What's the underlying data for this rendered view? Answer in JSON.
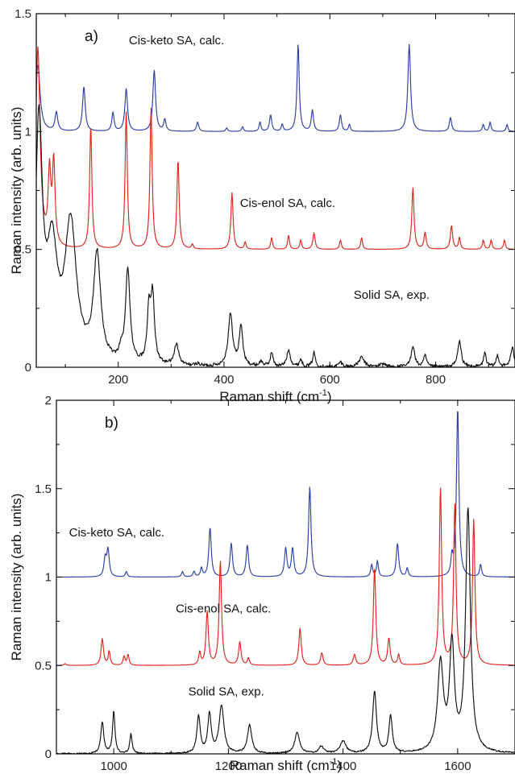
{
  "chart_data": [
    {
      "type": "line",
      "panel_label": "a)",
      "xlabel": "Raman shift (cm",
      "xlabel_sup": "-1",
      "xlabel_tail": ")",
      "ylabel": "Raman intensity (arb. units)",
      "xlim": [
        45,
        950
      ],
      "ylim": [
        0,
        1.5
      ],
      "xticks": [
        200,
        400,
        600,
        800
      ],
      "xtick_labels": [
        "200",
        "400",
        "600",
        "800"
      ],
      "yticks": [
        0,
        0.5,
        1,
        1.5
      ],
      "ytick_labels": [
        "0",
        "0.5",
        "1",
        "1.5"
      ],
      "minor_xticks": [
        100,
        300,
        500,
        700,
        900
      ],
      "minor_yticks": [
        0.25,
        0.75,
        1.25
      ],
      "series": [
        {
          "color": "#2b3fa8",
          "baseline": 1.0,
          "peaks": [
            [
              48,
              0.28,
              5
            ],
            [
              83,
              0.08,
              3
            ],
            [
              135,
              0.19,
              3
            ],
            [
              190,
              0.08,
              2.5
            ],
            [
              215,
              0.18,
              3
            ],
            [
              268,
              0.26,
              3
            ],
            [
              288,
              0.05,
              2.5
            ],
            [
              350,
              0.04,
              2.5
            ],
            [
              405,
              0.015,
              2
            ],
            [
              435,
              0.02,
              2
            ],
            [
              468,
              0.04,
              2
            ],
            [
              488,
              0.07,
              2.5
            ],
            [
              510,
              0.03,
              2
            ],
            [
              540,
              0.37,
              2.5
            ],
            [
              567,
              0.09,
              2.5
            ],
            [
              620,
              0.07,
              2.5
            ],
            [
              637,
              0.03,
              2
            ],
            [
              750,
              0.37,
              3
            ],
            [
              828,
              0.06,
              2.5
            ],
            [
              890,
              0.03,
              2
            ],
            [
              903,
              0.04,
              2
            ],
            [
              935,
              0.03,
              2
            ]
          ]
        },
        {
          "color": "#e0241c",
          "baseline": 0.5,
          "peaks": [
            [
              48,
              0.85,
              5
            ],
            [
              70,
              0.3,
              3
            ],
            [
              78,
              0.35,
              3
            ],
            [
              148,
              0.52,
              2.5
            ],
            [
              215,
              0.58,
              2.5
            ],
            [
              262,
              0.6,
              2.5
            ],
            [
              313,
              0.38,
              2.5
            ],
            [
              340,
              0.02,
              2
            ],
            [
              415,
              0.24,
              2.5
            ],
            [
              440,
              0.03,
              2
            ],
            [
              490,
              0.05,
              2
            ],
            [
              522,
              0.06,
              2
            ],
            [
              545,
              0.04,
              2
            ],
            [
              570,
              0.07,
              2.5
            ],
            [
              620,
              0.04,
              2
            ],
            [
              660,
              0.05,
              2
            ],
            [
              757,
              0.26,
              2.5
            ],
            [
              780,
              0.07,
              2.5
            ],
            [
              830,
              0.1,
              2.5
            ],
            [
              845,
              0.05,
              2
            ],
            [
              890,
              0.04,
              2
            ],
            [
              905,
              0.04,
              2
            ],
            [
              930,
              0.04,
              2
            ]
          ]
        },
        {
          "color": "#111111",
          "baseline": 0.0,
          "noise": 0.007,
          "peaks": [
            [
              50,
              1.0,
              8
            ],
            [
              75,
              0.45,
              12
            ],
            [
              110,
              0.58,
              13
            ],
            [
              160,
              0.45,
              8
            ],
            [
              205,
              0.04,
              4
            ],
            [
              218,
              0.4,
              5
            ],
            [
              258,
              0.22,
              4
            ],
            [
              265,
              0.28,
              4
            ],
            [
              310,
              0.09,
              5
            ],
            [
              350,
              0.01,
              4
            ],
            [
              412,
              0.22,
              5
            ],
            [
              432,
              0.17,
              4
            ],
            [
              470,
              0.02,
              4
            ],
            [
              490,
              0.06,
              3
            ],
            [
              522,
              0.07,
              4
            ],
            [
              545,
              0.03,
              3
            ],
            [
              570,
              0.06,
              3
            ],
            [
              620,
              0.02,
              4
            ],
            [
              660,
              0.04,
              6
            ],
            [
              700,
              0.015,
              6
            ],
            [
              757,
              0.09,
              4
            ],
            [
              780,
              0.05,
              3
            ],
            [
              845,
              0.11,
              4
            ],
            [
              893,
              0.06,
              3
            ],
            [
              917,
              0.05,
              3
            ],
            [
              945,
              0.08,
              4
            ]
          ]
        }
      ],
      "annotations": [
        {
          "text": "Cis-keto SA, calc.",
          "x": 220,
          "y": 1.37
        },
        {
          "text": "Cis-enol SA, calc.",
          "x": 430,
          "y": 0.68
        },
        {
          "text": "Solid SA, exp.",
          "x": 645,
          "y": 0.29
        }
      ]
    },
    {
      "type": "line",
      "panel_label": "b)",
      "xlabel": "Raman shift (cm",
      "xlabel_sup": "-1",
      "xlabel_tail": ")",
      "ylabel": "Raman intensity (arb. units)",
      "xlim": [
        900,
        1700
      ],
      "ylim": [
        0,
        2
      ],
      "xticks": [
        1000,
        1200,
        1400,
        1600
      ],
      "xtick_labels": [
        "1000",
        "1200",
        "1400",
        "1600"
      ],
      "yticks": [
        0,
        0.5,
        1,
        1.5,
        2
      ],
      "ytick_labels": [
        "0",
        "0.5",
        "1",
        "1.5",
        "2"
      ],
      "minor_xticks": [
        1100,
        1300,
        1500
      ],
      "minor_yticks": [
        0.25,
        0.75,
        1.25,
        1.75
      ],
      "series": [
        {
          "color": "#2b3fa8",
          "baseline": 1.0,
          "peaks": [
            [
              985,
              0.1,
              2.5
            ],
            [
              990,
              0.15,
              2.5
            ],
            [
              1022,
              0.03,
              2
            ],
            [
              1120,
              0.03,
              2
            ],
            [
              1140,
              0.03,
              2
            ],
            [
              1153,
              0.05,
              2
            ],
            [
              1168,
              0.28,
              2.5
            ],
            [
              1205,
              0.19,
              2.5
            ],
            [
              1233,
              0.18,
              2.5
            ],
            [
              1300,
              0.16,
              2.5
            ],
            [
              1312,
              0.16,
              2.5
            ],
            [
              1342,
              0.51,
              2.5
            ],
            [
              1450,
              0.07,
              2
            ],
            [
              1460,
              0.09,
              2
            ],
            [
              1495,
              0.19,
              2.5
            ],
            [
              1512,
              0.05,
              2
            ],
            [
              1590,
              0.1,
              2
            ],
            [
              1600,
              0.96,
              2.5
            ],
            [
              1640,
              0.07,
              2
            ]
          ]
        },
        {
          "color": "#e0241c",
          "baseline": 0.5,
          "peaks": [
            [
              915,
              0.01,
              2
            ],
            [
              980,
              0.15,
              2.5
            ],
            [
              992,
              0.08,
              2
            ],
            [
              1018,
              0.05,
              2
            ],
            [
              1025,
              0.06,
              2
            ],
            [
              1150,
              0.07,
              2
            ],
            [
              1163,
              0.3,
              2.5
            ],
            [
              1186,
              0.59,
              2.5
            ],
            [
              1220,
              0.13,
              2.5
            ],
            [
              1235,
              0.04,
              2
            ],
            [
              1325,
              0.21,
              2.5
            ],
            [
              1363,
              0.07,
              2.5
            ],
            [
              1420,
              0.06,
              2.5
            ],
            [
              1455,
              0.55,
              2.5
            ],
            [
              1480,
              0.15,
              2.5
            ],
            [
              1497,
              0.06,
              2
            ],
            [
              1570,
              1.0,
              2.5
            ],
            [
              1595,
              0.9,
              2.5
            ],
            [
              1628,
              0.82,
              2.5
            ]
          ]
        },
        {
          "color": "#111111",
          "baseline": 0.0,
          "noise": 0.004,
          "peaks": [
            [
              980,
              0.18,
              3
            ],
            [
              1000,
              0.24,
              2.5
            ],
            [
              1030,
              0.11,
              2.5
            ],
            [
              1148,
              0.21,
              3.5
            ],
            [
              1167,
              0.22,
              3.5
            ],
            [
              1188,
              0.27,
              5
            ],
            [
              1237,
              0.16,
              4.5
            ],
            [
              1320,
              0.12,
              5
            ],
            [
              1362,
              0.04,
              5
            ],
            [
              1400,
              0.07,
              6
            ],
            [
              1455,
              0.35,
              4
            ],
            [
              1483,
              0.21,
              3.5
            ],
            [
              1570,
              0.5,
              6
            ],
            [
              1590,
              0.6,
              5
            ],
            [
              1618,
              1.37,
              5
            ]
          ]
        }
      ],
      "annotations": [
        {
          "text": "Cis-keto SA, calc.",
          "x": 922,
          "y": 1.23
        },
        {
          "text": "Cis-enol SA, calc.",
          "x": 1108,
          "y": 0.8
        },
        {
          "text": "Solid SA, exp.",
          "x": 1130,
          "y": 0.33
        }
      ]
    }
  ]
}
